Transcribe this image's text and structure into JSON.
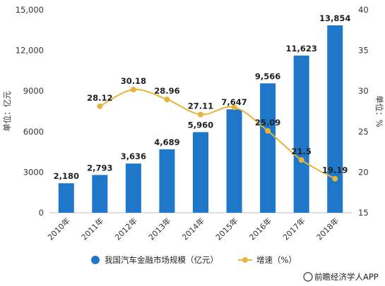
{
  "chart_data": {
    "type": "bar",
    "categories": [
      "2010年",
      "2011年",
      "2012年",
      "2013年",
      "2014年",
      "2015年",
      "2016年",
      "2017年",
      "2018年"
    ],
    "series": [
      {
        "name": "我国汽车金融市场规模（亿元）",
        "kind": "bar",
        "axis": "left",
        "color": "#1f77c9",
        "values": [
          2180,
          2793,
          3636,
          4689,
          5960,
          7647,
          9566,
          11623,
          13854
        ],
        "labels": [
          "2,180",
          "2,793",
          "3,636",
          "4,689",
          "5,960",
          "7,647",
          "9,566",
          "11,623",
          "13,854"
        ]
      },
      {
        "name": "增速（%）",
        "kind": "line",
        "axis": "right",
        "color": "#e6b43a",
        "values": [
          null,
          28.12,
          30.18,
          28.96,
          27.11,
          28,
          25.09,
          21.5,
          19.19
        ],
        "labels": [
          "",
          "28.12",
          "30.18",
          "28.96",
          "27.11",
          "",
          "25.09",
          "21.5",
          "19.19"
        ]
      }
    ],
    "ylabel": "单位：亿元",
    "y2label": "单位：%",
    "ylim": [
      0,
      15000
    ],
    "yticks": [
      0,
      3000,
      6000,
      9000,
      12000,
      15000
    ],
    "ytick_labels": [
      "0",
      "3000",
      "6000",
      "9000",
      "12,000",
      "15,000"
    ],
    "y2lim": [
      15,
      40
    ],
    "y2ticks": [
      15,
      20,
      25,
      30,
      35,
      40
    ],
    "y2tick_labels": [
      "15",
      "20",
      "25",
      "30",
      "35",
      "40"
    ],
    "grid": false,
    "legend_position": "bottom",
    "source": "前瞻经济学人APP"
  }
}
